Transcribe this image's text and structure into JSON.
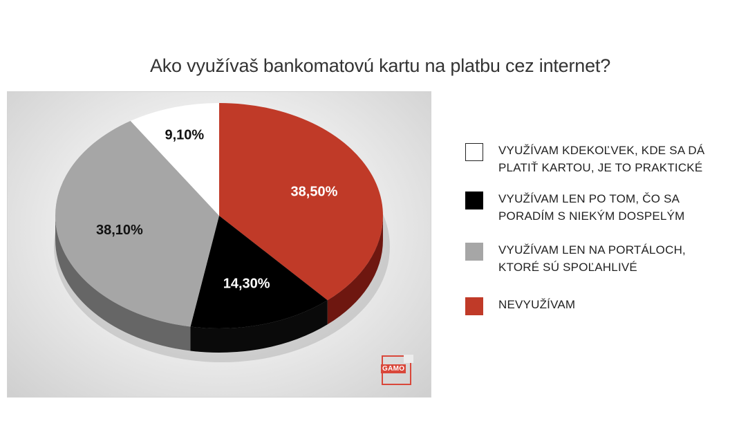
{
  "title": "Ako využívaš bankomatovú kartu na platbu cez internet?",
  "chart_data": {
    "type": "pie",
    "title": "Ako využívaš bankomatovú kartu na platbu cez internet?",
    "series": [
      {
        "name": "NEVYUŽÍVAM",
        "value": 38.5,
        "label": "38,50%",
        "color": "#c03a28",
        "side_color": "#6e1710",
        "label_color": "#ffffff"
      },
      {
        "name": "VYUŽÍVAM LEN PO TOM, ČO SA PORADÍM S NIEKÝM DOSPELÝM",
        "value": 14.3,
        "label": "14,30%",
        "color": "#000000",
        "side_color": "#0a0a0a",
        "label_color": "#ffffff"
      },
      {
        "name": "VYUŽÍVAM LEN NA PORTÁLOCH, KTORÉ SÚ SPOĽAHLIVÉ",
        "value": 38.1,
        "label": "38,10%",
        "color": "#a6a6a6",
        "side_color": "#666666",
        "label_color": "#111111"
      },
      {
        "name": "VYUŽÍVAM KDEKOĽVEK, KDE SA DÁ PLATIŤ KARTOU, JE TO PRAKTICKÉ",
        "value": 9.1,
        "label": "9,10%",
        "color": "#ffffff",
        "side_color": "#d0d0d0",
        "label_color": "#111111"
      }
    ],
    "legend_position": "right"
  },
  "legend": [
    {
      "label": "VYUŽÍVAM KDEKOĽVEK, KDE SA DÁ PLATIŤ KARTOU, JE TO PRAKTICKÉ",
      "color": "#ffffff"
    },
    {
      "label": "VYUŽÍVAM LEN PO TOM, ČO SA PORADÍM S NIEKÝM DOSPELÝM",
      "color": "#000000"
    },
    {
      "label": "VYUŽÍVAM LEN NA PORTÁLOCH, KTORÉ SÚ SPOĽAHLIVÉ",
      "color": "#a6a6a6"
    },
    {
      "label": "NEVYUŽÍVAM",
      "color": "#c03a28"
    }
  ],
  "logo": {
    "text": "GAMO",
    "color": "#d9473a"
  }
}
